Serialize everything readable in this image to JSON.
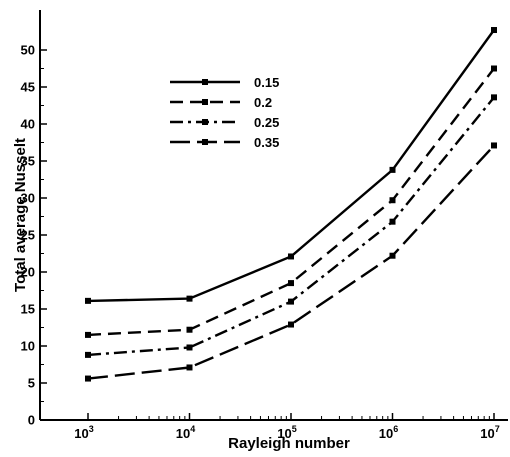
{
  "chart_data": {
    "type": "line",
    "x": [
      1000,
      10000,
      100000,
      1000000,
      10000000
    ],
    "x_ticks": [
      {
        "base": "10",
        "exp": "3"
      },
      {
        "base": "10",
        "exp": "4"
      },
      {
        "base": "10",
        "exp": "5"
      },
      {
        "base": "10",
        "exp": "6"
      },
      {
        "base": "10",
        "exp": "7"
      }
    ],
    "x_scale": "log",
    "xlim": [
      1000,
      10000000
    ],
    "ylim": [
      0,
      55
    ],
    "y_ticks": [
      "0",
      "5",
      "10",
      "15",
      "20",
      "25",
      "30",
      "35",
      "40",
      "45",
      "50"
    ],
    "xlabel": "Rayleigh number",
    "ylabel": "Total average Nusselt",
    "grid": false,
    "legend_position": "top-left (inside plot)",
    "series": [
      {
        "name": "0.15",
        "style": "solid",
        "values": [
          16.1,
          16.4,
          22.1,
          33.8,
          52.7
        ]
      },
      {
        "name": "0.2",
        "style": "dashed",
        "values": [
          11.5,
          12.2,
          18.5,
          29.7,
          47.5
        ]
      },
      {
        "name": "0.25",
        "style": "dash-dot",
        "values": [
          8.8,
          9.8,
          16.0,
          26.8,
          43.6
        ]
      },
      {
        "name": "0.35",
        "style": "long-dash",
        "values": [
          5.6,
          7.1,
          12.9,
          22.2,
          37.1
        ]
      }
    ],
    "line_color": "#000000"
  }
}
